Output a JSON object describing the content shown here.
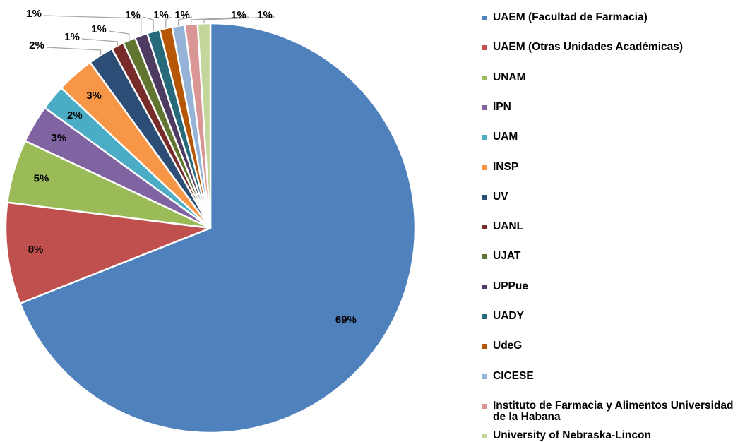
{
  "chart_data": {
    "type": "pie",
    "categories": [
      "UAEM (Facultad de Farmacia)",
      "UAEM (Otras Unidades Académicas)",
      "UNAM",
      "IPN",
      "UAM",
      "INSP",
      "UV",
      "UANL",
      "UJAT",
      "UPPue",
      "UADY",
      "UdeG",
      "CICESE",
      "Instituto de Farmacia y Alimentos Universidad de la Habana",
      "University of Nebraska-Lincon"
    ],
    "values": [
      69,
      8,
      5,
      3,
      2,
      3,
      2,
      1,
      1,
      1,
      1,
      1,
      1,
      1,
      1
    ],
    "value_labels": [
      "69%",
      "8%",
      "5%",
      "3%",
      "2%",
      "3%",
      "2%",
      "1%",
      "1%",
      "1%",
      "1%",
      "1%",
      "1%",
      "1%",
      "1%"
    ],
    "colors": [
      "#4f81bd",
      "#c0504d",
      "#9bbb59",
      "#8064a2",
      "#4bacc6",
      "#f79646",
      "#2c4d75",
      "#772c2a",
      "#5f7530",
      "#4d3b62",
      "#276a7c",
      "#b65708",
      "#95b3d7",
      "#d99694",
      "#c3d69b"
    ],
    "legend": "right"
  }
}
